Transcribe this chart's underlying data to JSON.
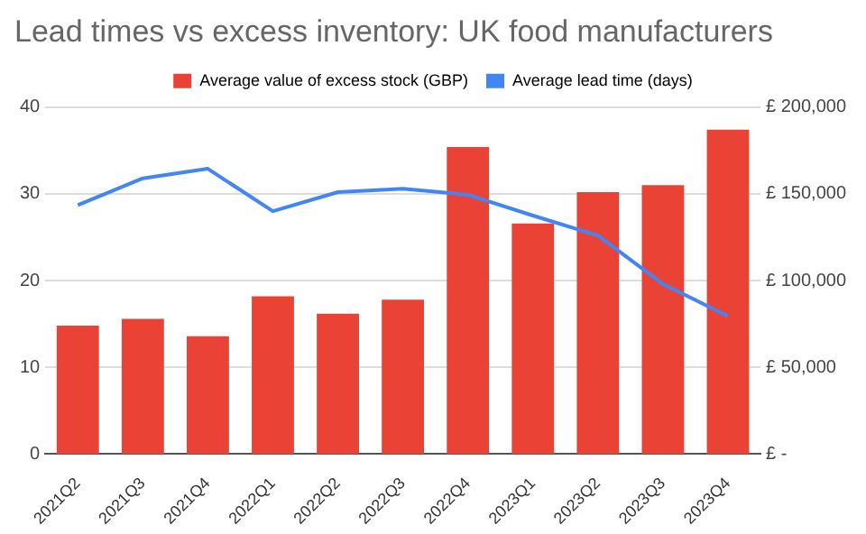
{
  "chart_data": {
    "type": "bar",
    "title": "Lead times vs excess inventory: UK food manufacturers",
    "categories": [
      "2021Q2",
      "2021Q3",
      "2021Q4",
      "2022Q1",
      "2022Q2",
      "2022Q3",
      "2022Q4",
      "2023Q1",
      "2023Q2",
      "2023Q3",
      "2023Q4"
    ],
    "series": [
      {
        "name": "Average value of excess stock (GBP)",
        "color": "#ea4335",
        "axis": "y2",
        "values": [
          74000,
          78000,
          68000,
          91000,
          81000,
          89000,
          177000,
          133000,
          151000,
          155000,
          187000
        ]
      },
      {
        "name": "Average lead time (days)",
        "color": "#4285f4",
        "type": "line",
        "axis": "y",
        "values": [
          28.7,
          31.8,
          32.9,
          28.0,
          30.2,
          30.6,
          29.9,
          27.5,
          25.2,
          19.6,
          15.9
        ]
      }
    ],
    "ylim": [
      0,
      40
    ],
    "yticks": [
      0,
      10,
      20,
      30,
      40
    ],
    "y2lim": [
      0,
      200000
    ],
    "y2ticks": [
      {
        "value": 0,
        "label": "£ -"
      },
      {
        "value": 50000,
        "label": "£ 50,000"
      },
      {
        "value": 100000,
        "label": "£ 100,000"
      },
      {
        "value": 150000,
        "label": "£ 150,000"
      },
      {
        "value": 200000,
        "label": "£ 200,000"
      }
    ],
    "grid": "y",
    "legend": "top",
    "marker": "none"
  }
}
